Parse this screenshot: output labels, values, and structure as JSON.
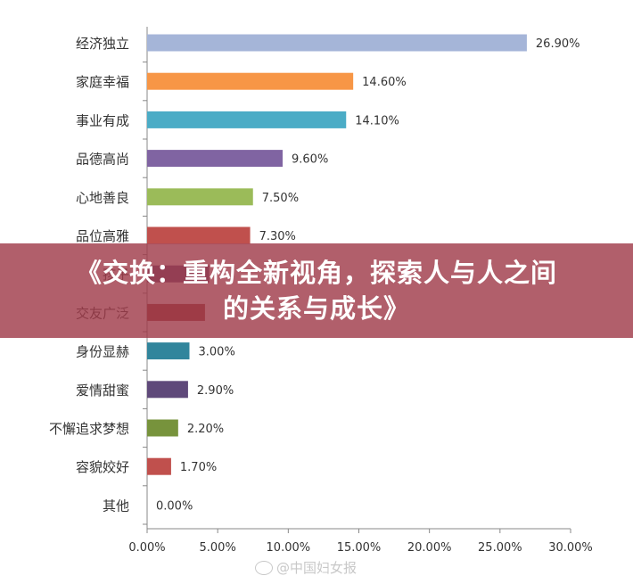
{
  "chart_data": {
    "type": "bar",
    "orientation": "horizontal",
    "categories": [
      "经济独立",
      "家庭幸福",
      "事业有成",
      "品德高尚",
      "心地善良",
      "品位高雅",
      "孩子",
      "交友广泛",
      "身份显赫",
      "爱情甜蜜",
      "不懈追求梦想",
      "容貌姣好",
      "其他"
    ],
    "values": [
      26.9,
      14.6,
      14.1,
      9.6,
      7.5,
      7.3,
      4.4,
      4.1,
      3.0,
      2.9,
      2.2,
      1.7,
      0.0
    ],
    "value_labels": [
      "26.90%",
      "14.60%",
      "14.10%",
      "9.60%",
      "7.50%",
      "7.30%",
      "",
      "",
      "3.00%",
      "2.90%",
      "2.20%",
      "1.70%",
      "0.00%"
    ],
    "colors": [
      "#a5b5d8",
      "#f79646",
      "#4bacc6",
      "#8064a2",
      "#9bbb59",
      "#c0504d",
      "#604a7b",
      "#953735",
      "#31859c",
      "#5f497a",
      "#77933c",
      "#c0504d",
      "#4f81bd"
    ],
    "xlim": [
      0,
      30
    ],
    "x_ticks": [
      "0.00%",
      "5.00%",
      "10.00%",
      "15.00%",
      "20.00%",
      "25.00%",
      "30.00%"
    ],
    "grid": false,
    "title": "",
    "xlabel": "",
    "ylabel": ""
  },
  "banner": {
    "line1": "《交换：重构全新视角，探索人与人之间",
    "line2": "的关系与成长》"
  },
  "watermark": {
    "text": "@中国妇女报"
  }
}
